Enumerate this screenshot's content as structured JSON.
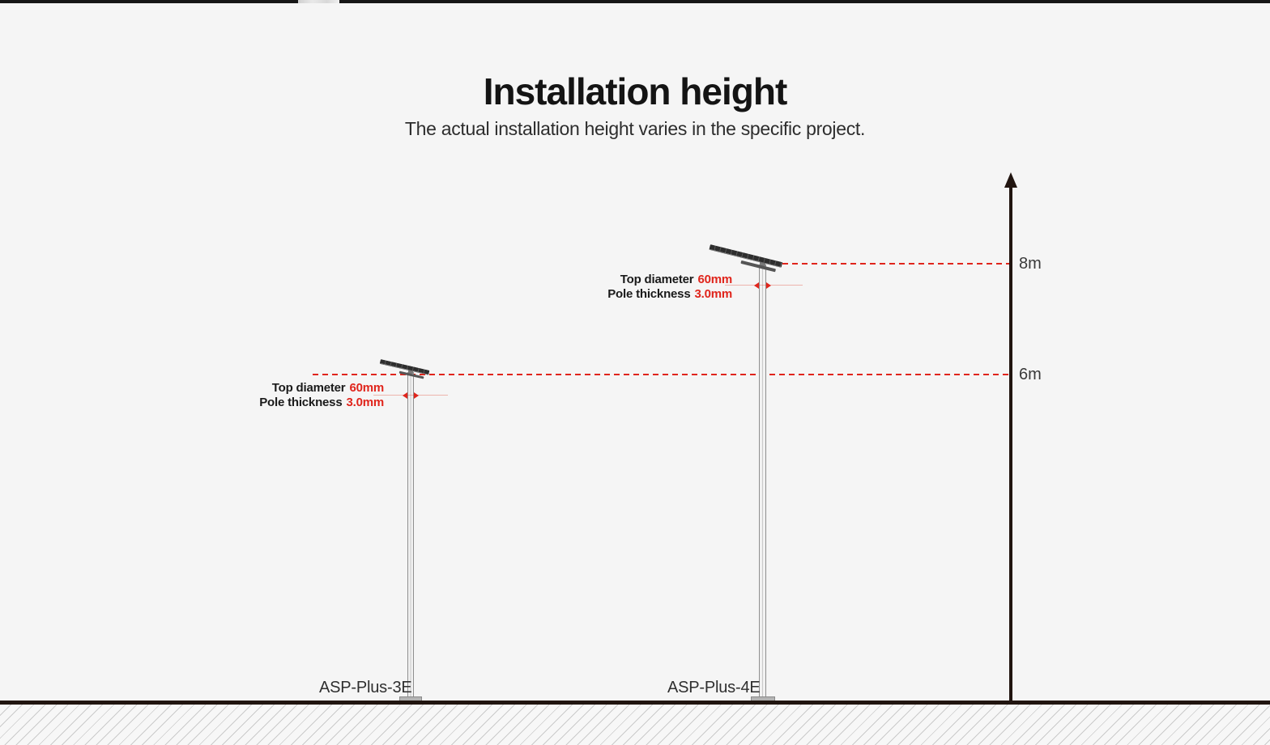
{
  "header": {
    "title": "Installation height",
    "subtitle": "The actual installation height varies in the specific project."
  },
  "axis": {
    "marker_8m": "8m",
    "marker_6m": "6m"
  },
  "poles": [
    {
      "model": "ASP-Plus-3E",
      "installation_height": "6m",
      "spec": {
        "top_diameter_label": "Top diameter",
        "top_diameter_value": "60mm",
        "pole_thickness_label": "Pole thickness",
        "pole_thickness_value": "3.0mm"
      }
    },
    {
      "model": "ASP-Plus-4E",
      "installation_height": "8m",
      "spec": {
        "top_diameter_label": "Top diameter",
        "top_diameter_value": "60mm",
        "pole_thickness_label": "Pole thickness",
        "pole_thickness_value": "3.0mm"
      }
    }
  ],
  "colors": {
    "accent_red": "#e0251c",
    "ink": "#211510",
    "background": "#f5f5f5"
  }
}
